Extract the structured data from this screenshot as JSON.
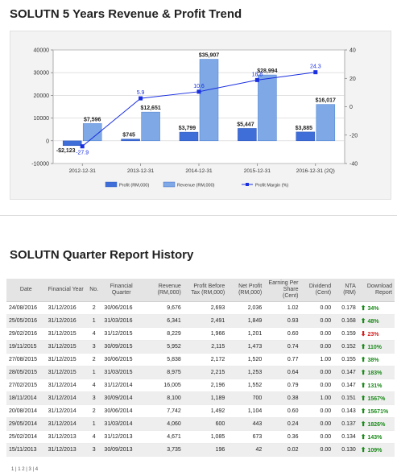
{
  "chart_section": {
    "title": "SOLUTN 5 Years Revenue & Profit Trend"
  },
  "chart_data": {
    "type": "bar",
    "categories": [
      "2012-12-31",
      "2013-12-31",
      "2014-12-31",
      "2015-12-31",
      "2016-12-31 (2Q)"
    ],
    "series": [
      {
        "name": "Profit (RM,000)",
        "values": [
          -2123,
          745,
          3799,
          5447,
          3885
        ],
        "labels": [
          "-$2,123",
          "$745",
          "$3,799",
          "$5,447",
          "$3,885"
        ],
        "color": "#3f6ed8"
      },
      {
        "name": "Revenue (RM,000)",
        "values": [
          7596,
          12651,
          35907,
          28994,
          16017
        ],
        "labels": [
          "$7,596",
          "$12,651",
          "$35,907",
          "$28,994",
          "$16,017"
        ],
        "color": "#7ea8e6"
      },
      {
        "name": "Profit Margin (%)",
        "type": "line",
        "axis": "right",
        "values": [
          -27.9,
          5.9,
          10.6,
          18.8,
          24.3
        ],
        "labels": [
          "-27.9",
          "5.9",
          "10.6",
          "18.8",
          "24.3"
        ],
        "color": "#1a2fe0"
      }
    ],
    "y_left": {
      "ticks": [
        -10000,
        0,
        10000,
        20000,
        30000,
        40000
      ],
      "tick_labels": [
        "-10000",
        "0",
        "10000",
        "20000",
        "30000",
        "40000"
      ],
      "lim": [
        -10000,
        40000
      ]
    },
    "y_right": {
      "ticks": [
        -40,
        -20,
        0,
        20,
        40
      ],
      "tick_labels": [
        "-40",
        "-20",
        "0",
        "20",
        "40"
      ],
      "lim": [
        -40,
        40
      ]
    },
    "grid": true,
    "legend_position": "bottom"
  },
  "report_section": {
    "title": "SOLUTN Quarter Report History"
  },
  "table": {
    "headers": [
      "Date",
      "Financial Year",
      "No.",
      "Financial Quarter",
      "Revenue (RM,000)",
      "Profit Before Tax (RM,000)",
      "Net Profit (RM,000)",
      "Earning Per Share (Cent)",
      "Dividend (Cent)",
      "NTA (RM)",
      "Download Report"
    ],
    "rows": [
      [
        "24/08/2016",
        "31/12/2016",
        "2",
        "30/06/2016",
        "9,676",
        "2,693",
        "2,036",
        "1.02",
        "0.00",
        "0.178",
        "34%",
        "up"
      ],
      [
        "25/05/2016",
        "31/12/2016",
        "1",
        "31/03/2016",
        "6,341",
        "2,491",
        "1,849",
        "0.93",
        "0.00",
        "0.168",
        "48%",
        "up"
      ],
      [
        "29/02/2016",
        "31/12/2015",
        "4",
        "31/12/2015",
        "8,229",
        "1,966",
        "1,201",
        "0.60",
        "0.00",
        "0.159",
        "23%",
        "down"
      ],
      [
        "19/11/2015",
        "31/12/2015",
        "3",
        "30/09/2015",
        "5,952",
        "2,115",
        "1,473",
        "0.74",
        "0.00",
        "0.152",
        "110%",
        "up"
      ],
      [
        "27/08/2015",
        "31/12/2015",
        "2",
        "30/06/2015",
        "5,838",
        "2,172",
        "1,520",
        "0.77",
        "1.00",
        "0.155",
        "38%",
        "up"
      ],
      [
        "28/05/2015",
        "31/12/2015",
        "1",
        "31/03/2015",
        "8,975",
        "2,215",
        "1,253",
        "0.64",
        "0.00",
        "0.147",
        "183%",
        "up"
      ],
      [
        "27/02/2015",
        "31/12/2014",
        "4",
        "31/12/2014",
        "16,005",
        "2,196",
        "1,552",
        "0.79",
        "0.00",
        "0.147",
        "131%",
        "up"
      ],
      [
        "18/11/2014",
        "31/12/2014",
        "3",
        "30/09/2014",
        "8,100",
        "1,189",
        "700",
        "0.38",
        "1.00",
        "0.151",
        "1567%",
        "up"
      ],
      [
        "20/08/2014",
        "31/12/2014",
        "2",
        "30/06/2014",
        "7,742",
        "1,492",
        "1,104",
        "0.60",
        "0.00",
        "0.143",
        "15671%",
        "up"
      ],
      [
        "29/05/2014",
        "31/12/2014",
        "1",
        "31/03/2014",
        "4,060",
        "600",
        "443",
        "0.24",
        "0.00",
        "0.137",
        "1826%",
        "up"
      ],
      [
        "25/02/2014",
        "31/12/2013",
        "4",
        "31/12/2013",
        "4,671",
        "1,085",
        "673",
        "0.36",
        "0.00",
        "0.134",
        "143%",
        "up"
      ],
      [
        "15/11/2013",
        "31/12/2013",
        "3",
        "30/09/2013",
        "3,735",
        "196",
        "42",
        "0.02",
        "0.00",
        "0.130",
        "109%",
        "up"
      ]
    ]
  },
  "pagination": {
    "text": "1 | 1 2 | 3 | 4"
  }
}
